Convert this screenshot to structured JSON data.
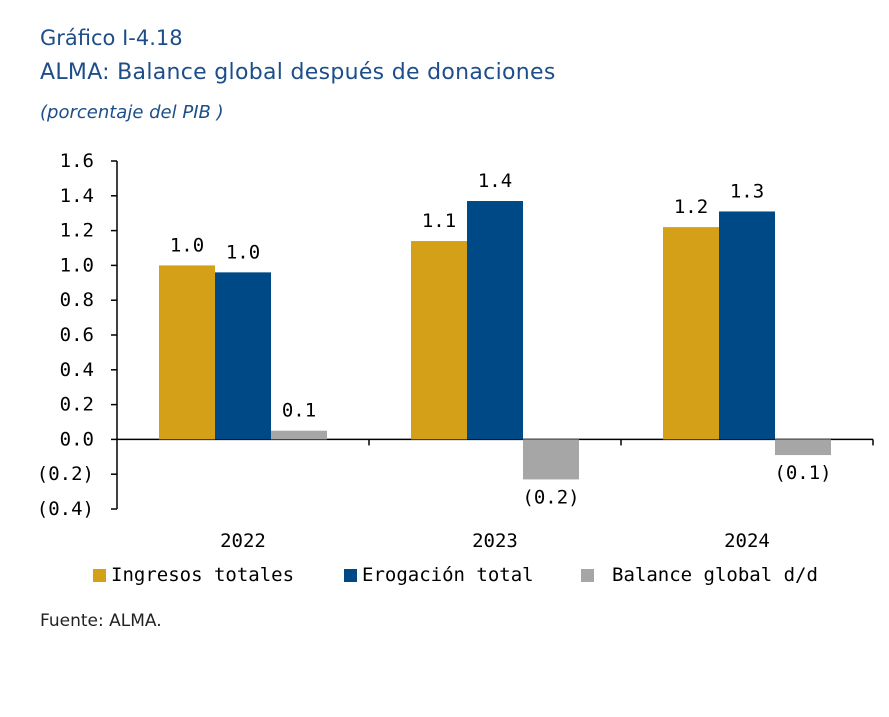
{
  "header": {
    "figure_label": "Gráfico I-4.18",
    "title": "ALMA: Balance global después de donaciones",
    "subtitle": "(porcentaje del PIB )"
  },
  "source": "Fuente: ALMA.",
  "colors": {
    "series1": "#d4a017",
    "series2": "#004987",
    "series3": "#a6a6a6"
  },
  "chart_data": {
    "type": "bar",
    "categories": [
      "2022",
      "2023",
      "2024"
    ],
    "series": [
      {
        "name": "Ingresos totales",
        "values": [
          1.0,
          1.14,
          1.22
        ],
        "labels": [
          "1.0",
          "1.1",
          "1.2"
        ]
      },
      {
        "name": "Erogación total",
        "values": [
          0.96,
          1.37,
          1.31
        ],
        "labels": [
          "1.0",
          "1.4",
          "1.3"
        ]
      },
      {
        "name": "Balance global d/d",
        "values": [
          0.05,
          -0.23,
          -0.09
        ],
        "labels": [
          "0.1",
          "(0.2)",
          "(0.1)"
        ]
      }
    ],
    "ylim": [
      -0.4,
      1.6
    ],
    "yticks": [
      1.6,
      1.4,
      1.2,
      1.0,
      0.8,
      0.6,
      0.4,
      0.2,
      0.0,
      -0.2,
      -0.4
    ],
    "ytick_labels": [
      "1.6",
      "1.4",
      "1.2",
      "1.0",
      "0.8",
      "0.6",
      "0.4",
      "0.2",
      "0.0",
      "(0.2)",
      "(0.4)"
    ],
    "legend_position": "bottom",
    "grid": false
  }
}
